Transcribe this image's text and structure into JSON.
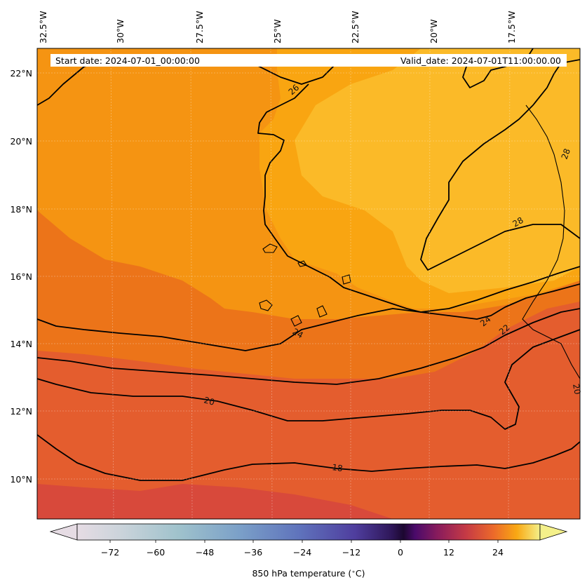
{
  "map": {
    "start_date_text": "Start date: 2024-07-01_00:00:00",
    "valid_date_text": "Valid_date: 2024-07-01T11:00:00.00",
    "lon_labels": [
      "32.5°W",
      "30°W",
      "27.5°W",
      "25°W",
      "22.5°W",
      "20°W",
      "17.5°W"
    ],
    "lat_labels": [
      "22°N",
      "20°N",
      "18°N",
      "16°N",
      "14°N",
      "12°N",
      "10°N"
    ],
    "contour_labels": [
      "26",
      "28",
      "28",
      "24",
      "24",
      "22",
      "20",
      "20",
      "18"
    ],
    "colors": {
      "warmest": "#FBBD26",
      "warm": "#F9A511",
      "mid": "#F0820F",
      "cool": "#E45D2E",
      "coolest": "#D64540",
      "contour": "#000000"
    }
  },
  "colorbar": {
    "ticks": [
      "−72",
      "−60",
      "−48",
      "−36",
      "−24",
      "−12",
      "0",
      "12",
      "24"
    ],
    "label": "850 hPa temperature (",
    "label_unit": "∘",
    "label_end": "C)"
  }
}
